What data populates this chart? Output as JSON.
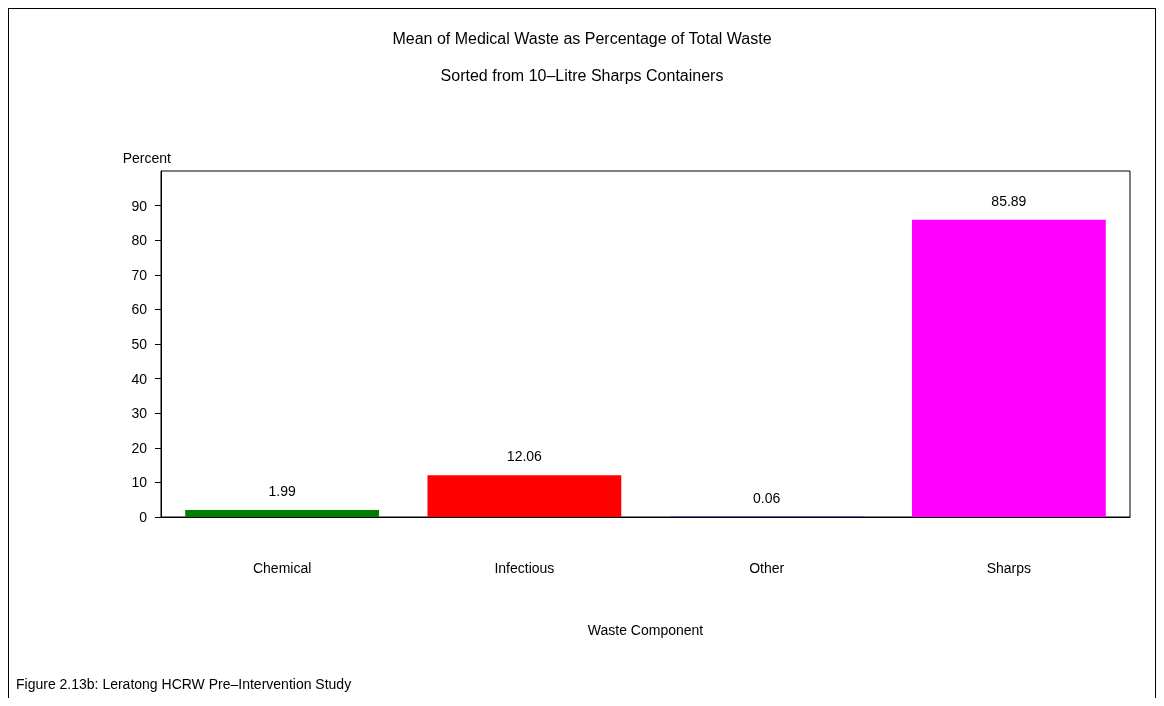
{
  "chart_data": {
    "type": "bar",
    "title": "Mean of Medical Waste as Percentage of Total Waste",
    "subtitle": "Sorted from 10–Litre Sharps Containers",
    "xlabel": "Waste Component",
    "ylabel": "Percent",
    "categories": [
      "Chemical",
      "Infectious",
      "Other",
      "Sharps"
    ],
    "values": [
      1.99,
      12.06,
      0.06,
      85.89
    ],
    "colors": [
      "#008000",
      "#ff0000",
      "#0000ff",
      "#ff00ff"
    ],
    "ylim": [
      0,
      100
    ],
    "yticks": [
      0,
      10,
      20,
      30,
      40,
      50,
      60,
      70,
      80,
      90
    ],
    "grid": false,
    "data_labels": true,
    "annotations": [
      "Figure 2.13b: Leratong HCRW Pre–Intervention Study"
    ]
  }
}
